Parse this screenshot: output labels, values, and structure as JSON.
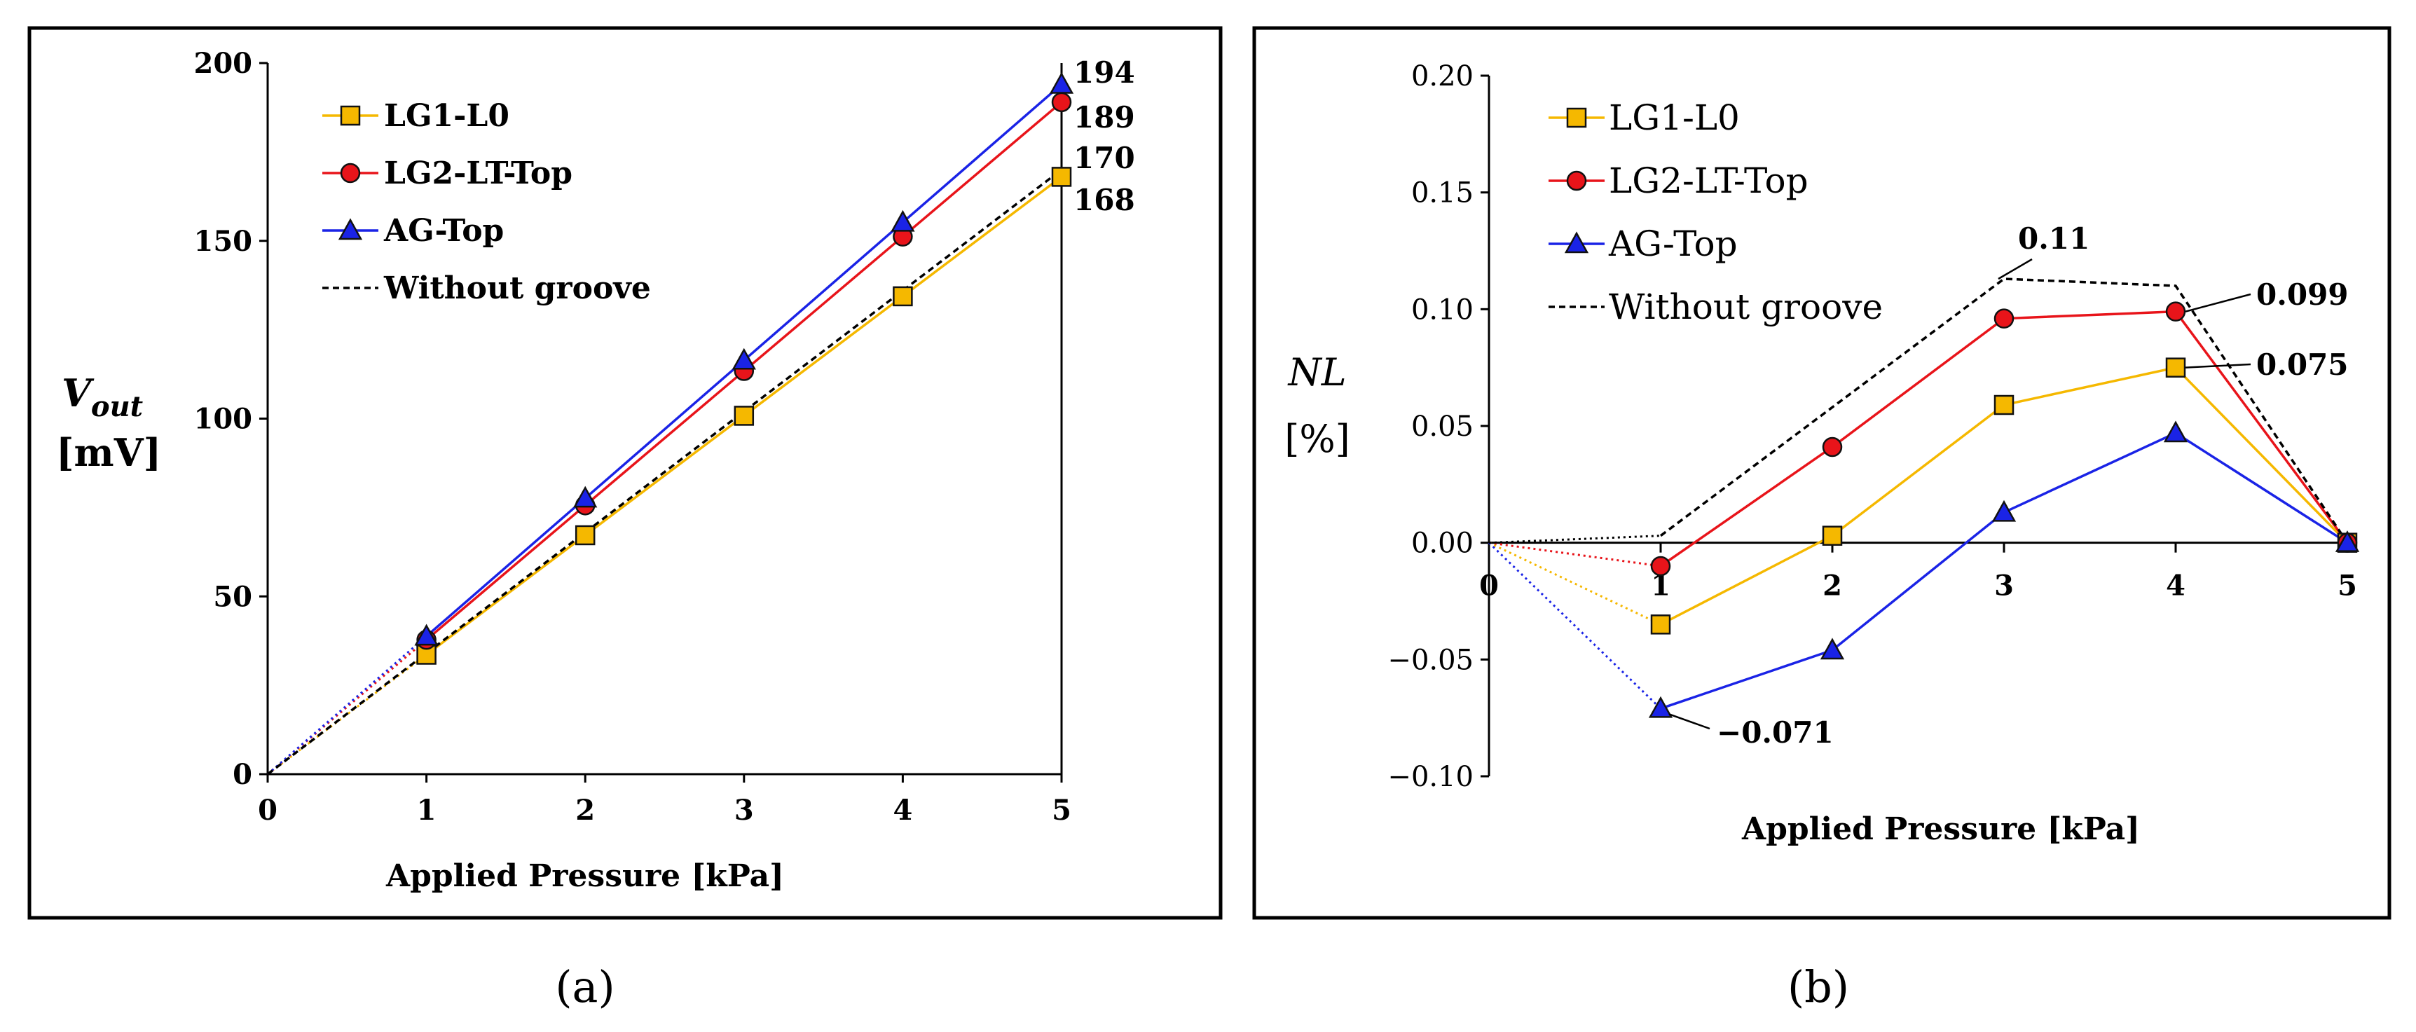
{
  "colors": {
    "lg1": "#F5B800",
    "lg2": "#E8141A",
    "ag": "#1A23E6",
    "without": "#000000",
    "marker_edge": "#111111"
  },
  "chart_data": [
    {
      "type": "line",
      "panel": "(a)",
      "xlabel": "Applied Pressure [kPa]",
      "ylabel_main": "V",
      "ylabel_sub": "out",
      "ylabel_unit": "[mV]",
      "xlim": [
        0,
        5
      ],
      "ylim": [
        0,
        200
      ],
      "xticks": [
        0,
        1,
        2,
        3,
        4,
        5
      ],
      "yticks": [
        0,
        50,
        100,
        150,
        200
      ],
      "xtick_labels": [
        "0",
        "1",
        "2",
        "3",
        "4",
        "5"
      ],
      "ytick_labels": [
        "0",
        "50",
        "100",
        "150",
        "200"
      ],
      "x": [
        0,
        1,
        2,
        3,
        4,
        5
      ],
      "series": [
        {
          "name": "LG1-L0",
          "key": "lg1",
          "marker": "square",
          "origin_dotted": true,
          "values": [
            0,
            33.6,
            67.2,
            100.8,
            134.4,
            168
          ]
        },
        {
          "name": "LG2-LT-Top",
          "key": "lg2",
          "marker": "circle",
          "origin_dotted": true,
          "values": [
            0,
            37.8,
            75.6,
            113.4,
            151.2,
            189
          ]
        },
        {
          "name": "AG-Top",
          "key": "ag",
          "marker": "triangle",
          "origin_dotted": true,
          "values": [
            0,
            38.8,
            77.6,
            116.4,
            155.2,
            194
          ]
        },
        {
          "name": "Without groove",
          "key": "without",
          "marker": "none",
          "dashed": true,
          "values": [
            0,
            34,
            68,
            102,
            136,
            170
          ]
        }
      ],
      "end_labels": [
        "194",
        "189",
        "170",
        "168"
      ]
    },
    {
      "type": "line",
      "panel": "(b)",
      "xlabel": "Applied Pressure [kPa]",
      "ylabel_main": "NL",
      "ylabel_unit": "[%]",
      "xlim": [
        0,
        5
      ],
      "ylim": [
        -0.1,
        0.2
      ],
      "xticks": [
        0,
        1,
        2,
        3,
        4,
        5
      ],
      "yticks": [
        -0.1,
        -0.05,
        0,
        0.05,
        0.1,
        0.15,
        0.2
      ],
      "xtick_labels": [
        "0",
        "1",
        "2",
        "3",
        "4",
        "5"
      ],
      "ytick_labels": [
        "−0.10",
        "−0.05",
        "0.00",
        "0.05",
        "0.10",
        "0.15",
        "0.20"
      ],
      "x": [
        0,
        1,
        2,
        3,
        4,
        5
      ],
      "series": [
        {
          "name": "LG1-L0",
          "key": "lg1",
          "marker": "square",
          "origin_dotted": true,
          "values": [
            0,
            -0.035,
            0.003,
            0.059,
            0.075,
            0
          ]
        },
        {
          "name": "LG2-LT-Top",
          "key": "lg2",
          "marker": "circle",
          "origin_dotted": true,
          "values": [
            0,
            -0.01,
            0.041,
            0.096,
            0.099,
            0
          ]
        },
        {
          "name": "AG-Top",
          "key": "ag",
          "marker": "triangle",
          "origin_dotted": true,
          "values": [
            0,
            -0.071,
            -0.046,
            0.013,
            0.047,
            0
          ]
        },
        {
          "name": "Without groove",
          "key": "without",
          "marker": "none",
          "dashed": true,
          "origin_dotted": true,
          "values": [
            0,
            0.003,
            0.058,
            0.113,
            0.11,
            0
          ]
        }
      ],
      "annotations": [
        {
          "text": "0.11",
          "x": 3,
          "y": 0.113
        },
        {
          "text": "0.099",
          "x": 4,
          "y": 0.099
        },
        {
          "text": "0.075",
          "x": 4,
          "y": 0.075
        },
        {
          "text": "−0.071",
          "x": 1,
          "y": -0.071
        }
      ]
    }
  ]
}
